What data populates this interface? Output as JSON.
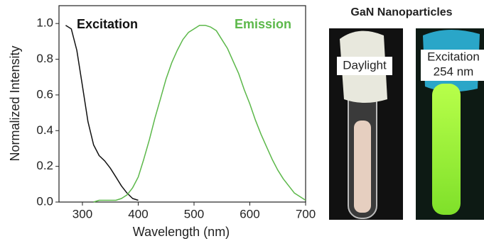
{
  "chart_data": {
    "type": "line",
    "x_label": "Wavelength (nm)",
    "y_label": "Normalized Intensity",
    "x": [
      270,
      280,
      290,
      300,
      310,
      320,
      330,
      340,
      350,
      360,
      370,
      380,
      390,
      400,
      410,
      420,
      430,
      440,
      450,
      460,
      470,
      480,
      490,
      500,
      510,
      520,
      530,
      540,
      550,
      560,
      570,
      580,
      590,
      600,
      610,
      620,
      630,
      640,
      650,
      660,
      670,
      680,
      690,
      700
    ],
    "series": [
      {
        "name": "Excitation",
        "color": "#111111",
        "values": [
          0.99,
          0.97,
          0.85,
          0.65,
          0.45,
          0.32,
          0.26,
          0.23,
          0.19,
          0.14,
          0.09,
          0.05,
          0.02,
          0.01,
          null,
          null,
          null,
          null,
          null,
          null,
          null,
          null,
          null,
          null,
          null,
          null,
          null,
          null,
          null,
          null,
          null,
          null,
          null,
          null,
          null,
          null,
          null,
          null,
          null,
          null,
          null,
          null,
          null,
          null
        ]
      },
      {
        "name": "Emission",
        "color": "#5cb84a",
        "values": [
          null,
          null,
          null,
          null,
          null,
          0.0,
          0.01,
          0.01,
          0.01,
          0.01,
          0.02,
          0.04,
          0.08,
          0.14,
          0.24,
          0.35,
          0.47,
          0.58,
          0.69,
          0.78,
          0.85,
          0.91,
          0.95,
          0.97,
          0.99,
          0.99,
          0.98,
          0.96,
          0.91,
          0.86,
          0.79,
          0.72,
          0.63,
          0.55,
          0.46,
          0.38,
          0.31,
          0.24,
          0.18,
          0.13,
          0.09,
          0.05,
          0.03,
          0.01
        ]
      }
    ],
    "xlim": [
      258,
      700
    ],
    "ylim": [
      0,
      1.1
    ],
    "xticks": [
      300,
      400,
      500,
      600,
      700
    ],
    "yticks": [
      {
        "value": 0,
        "label": "0.0"
      },
      0.2,
      0.4,
      0.6,
      0.8,
      {
        "value": 1,
        "label": "1.0"
      }
    ],
    "grid": false
  },
  "photo_panel": {
    "title": "GaN Nanoparticles",
    "daylight_label": "Daylight",
    "excitation_label": [
      "Excitation",
      "254 nm"
    ]
  }
}
